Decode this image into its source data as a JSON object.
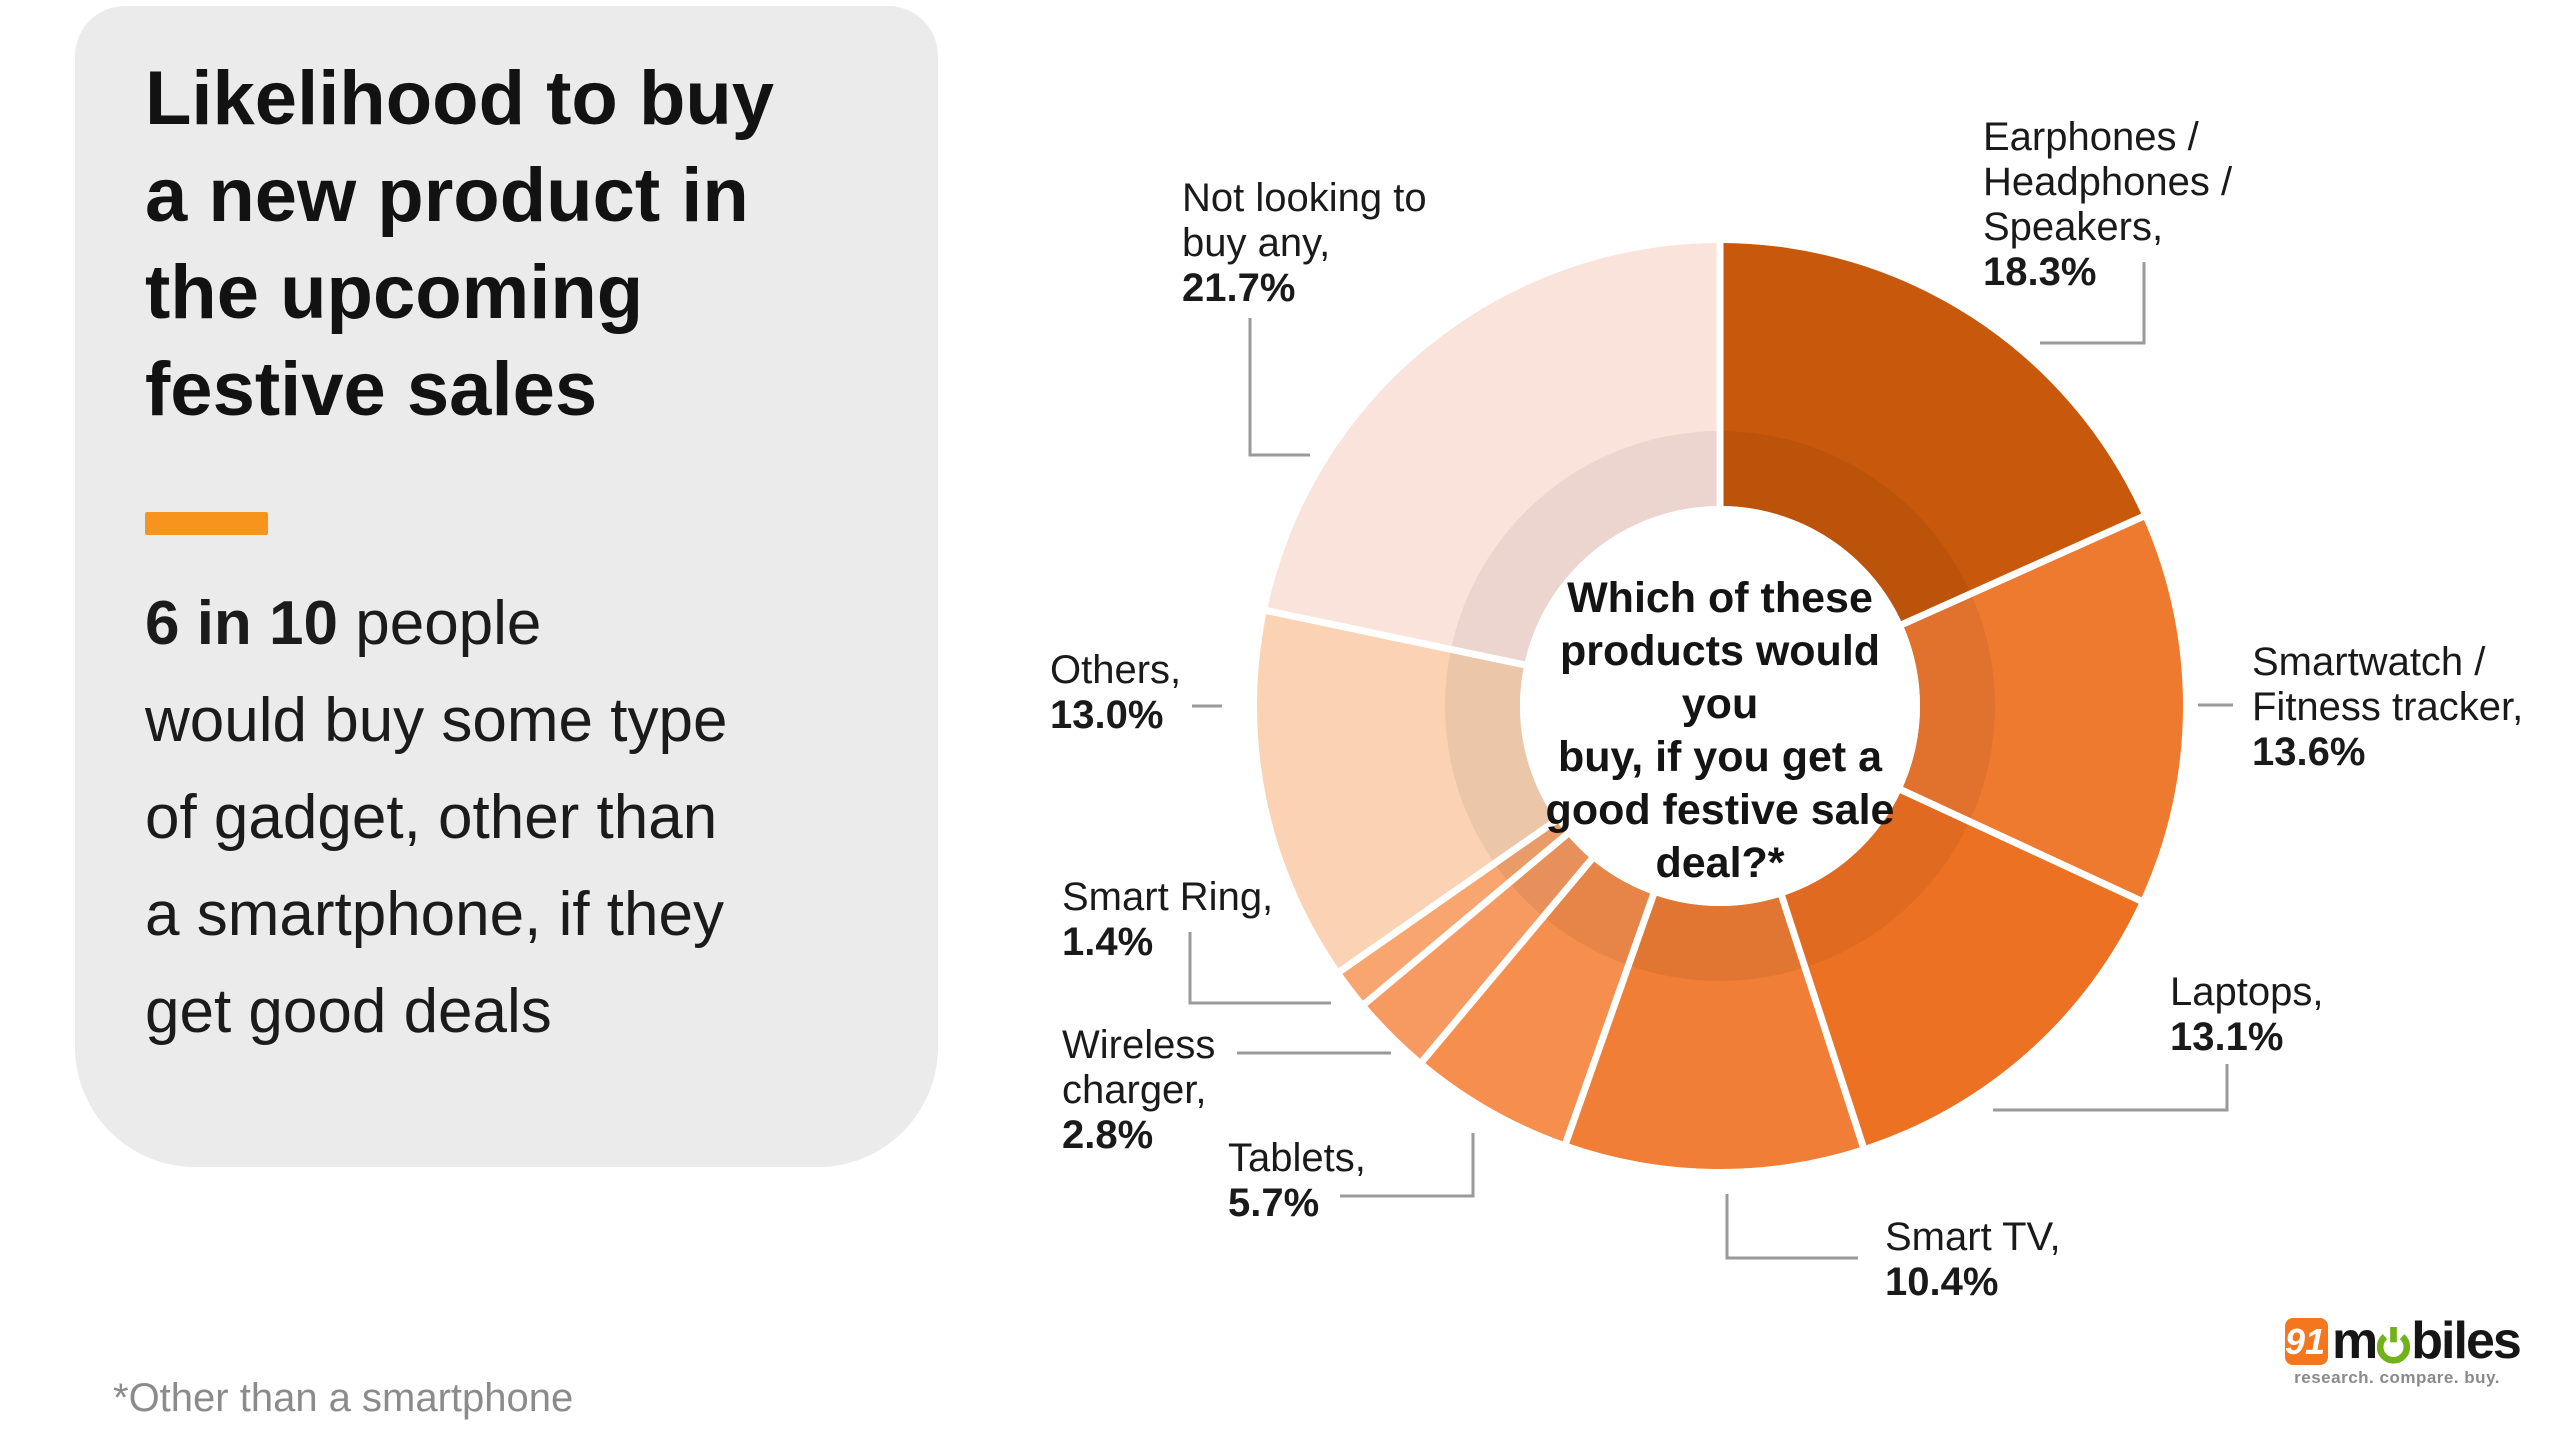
{
  "panel": {
    "title_lines": [
      "Likelihood to buy",
      "a new product in",
      "the upcoming",
      "festive sales"
    ],
    "accent_color": "#F7941E",
    "body_bold": "6 in 10",
    "body_line1_rest": " people",
    "body_lines": [
      "would buy some type",
      "of gadget, other than",
      "a smartphone, if they",
      "get good deals"
    ]
  },
  "footnote": "*Other than a smartphone",
  "chart_data": {
    "type": "pie",
    "subtype": "donut",
    "title": "Which of these products would you buy, if you get a good festive sale deal?*",
    "center_lines": [
      "Which of these",
      "products would you",
      "buy, if you get a",
      "good festive sale",
      "deal?*"
    ],
    "start_angle_deg": 0,
    "direction": "clockwise",
    "total": 100.0,
    "slices": [
      {
        "label": "Earphones / Headphones / Speakers",
        "value": 18.3,
        "pct_label": "18.3%",
        "color": "#C8590C",
        "label_lines": [
          "Earphones /",
          "Headphones /",
          "Speakers,"
        ]
      },
      {
        "label": "Smartwatch / Fitness tracker",
        "value": 13.6,
        "pct_label": "13.6%",
        "color": "#EE7A30",
        "label_lines": [
          "Smartwatch /",
          "Fitness tracker,"
        ]
      },
      {
        "label": "Laptops",
        "value": 13.1,
        "pct_label": "13.1%",
        "color": "#ED7122",
        "label_lines": [
          "Laptops,"
        ]
      },
      {
        "label": "Smart TV",
        "value": 10.4,
        "pct_label": "10.4%",
        "color": "#F07E36",
        "label_lines": [
          "Smart TV,"
        ]
      },
      {
        "label": "Tablets",
        "value": 5.7,
        "pct_label": "5.7%",
        "color": "#F68E4E",
        "label_lines": [
          "Tablets,"
        ]
      },
      {
        "label": "Wireless charger",
        "value": 2.8,
        "pct_label": "2.8%",
        "color": "#F79A61",
        "label_lines": [
          "Wireless",
          "charger,"
        ]
      },
      {
        "label": "Smart Ring",
        "value": 1.4,
        "pct_label": "1.4%",
        "color": "#F8A56F",
        "label_lines": [
          "Smart Ring,"
        ]
      },
      {
        "label": "Others",
        "value": 13.0,
        "pct_label": "13.0%",
        "color": "#FBD3B4",
        "label_lines": [
          "Others,"
        ]
      },
      {
        "label": "Not looking to buy any",
        "value": 21.7,
        "pct_label": "21.7%",
        "color": "#FAE3DB",
        "label_lines": [
          "Not looking to",
          "buy any,"
        ]
      }
    ]
  },
  "logo": {
    "badge": "91",
    "wordmark_pre": "m",
    "wordmark_post": "biles",
    "tagline": "research. compare. buy.",
    "orange": "#F4771F",
    "green": "#71B219"
  }
}
